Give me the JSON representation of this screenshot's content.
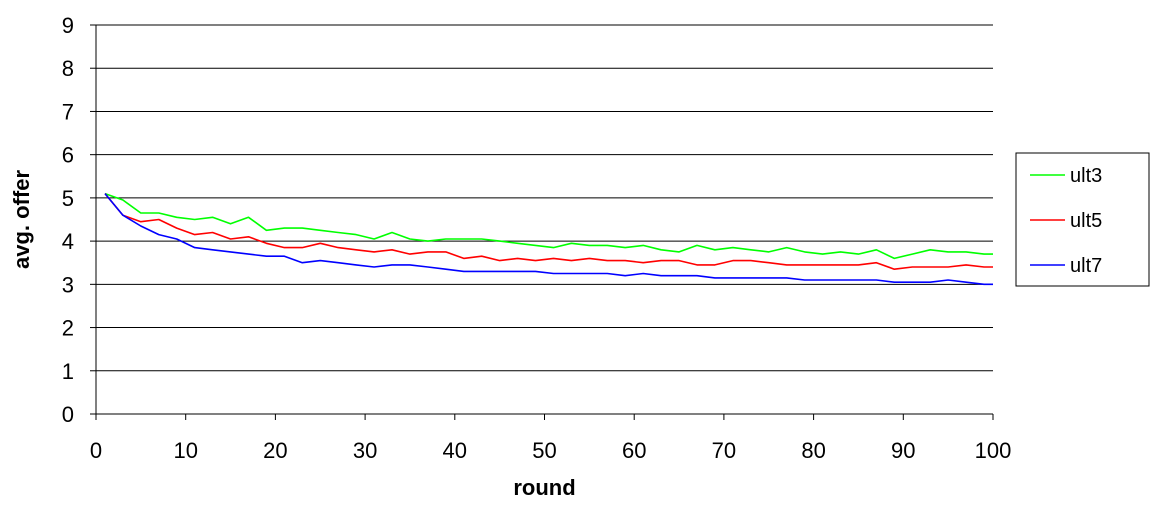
{
  "chart_data": {
    "type": "line",
    "xlabel": "round",
    "ylabel": "avg. offer",
    "xlim": [
      0,
      100
    ],
    "ylim": [
      0,
      9
    ],
    "xticks": [
      0,
      10,
      20,
      30,
      40,
      50,
      60,
      70,
      80,
      90,
      100
    ],
    "yticks": [
      0,
      1,
      2,
      3,
      4,
      5,
      6,
      7,
      8,
      9
    ],
    "grid": "horizontal",
    "legend_position": "right",
    "series": [
      {
        "name": "ult3",
        "color": "#00ff00",
        "x": [
          1,
          3,
          5,
          7,
          9,
          11,
          13,
          15,
          17,
          19,
          21,
          23,
          25,
          27,
          29,
          31,
          33,
          35,
          37,
          39,
          41,
          43,
          45,
          47,
          49,
          51,
          53,
          55,
          57,
          59,
          61,
          63,
          65,
          67,
          69,
          71,
          73,
          75,
          77,
          79,
          81,
          83,
          85,
          87,
          89,
          91,
          93,
          95,
          97,
          99,
          100
        ],
        "values": [
          5.1,
          4.95,
          4.65,
          4.65,
          4.55,
          4.5,
          4.55,
          4.4,
          4.55,
          4.25,
          4.3,
          4.3,
          4.25,
          4.2,
          4.15,
          4.05,
          4.2,
          4.05,
          4.0,
          4.05,
          4.05,
          4.05,
          4.0,
          3.95,
          3.9,
          3.85,
          3.95,
          3.9,
          3.9,
          3.85,
          3.9,
          3.8,
          3.75,
          3.9,
          3.8,
          3.85,
          3.8,
          3.75,
          3.85,
          3.75,
          3.7,
          3.75,
          3.7,
          3.8,
          3.6,
          3.7,
          3.8,
          3.75,
          3.75,
          3.7,
          3.7
        ]
      },
      {
        "name": "ult5",
        "color": "#ff0000",
        "x": [
          1,
          3,
          5,
          7,
          9,
          11,
          13,
          15,
          17,
          19,
          21,
          23,
          25,
          27,
          29,
          31,
          33,
          35,
          37,
          39,
          41,
          43,
          45,
          47,
          49,
          51,
          53,
          55,
          57,
          59,
          61,
          63,
          65,
          67,
          69,
          71,
          73,
          75,
          77,
          79,
          81,
          83,
          85,
          87,
          89,
          91,
          93,
          95,
          97,
          99,
          100
        ],
        "values": [
          5.1,
          4.6,
          4.45,
          4.5,
          4.3,
          4.15,
          4.2,
          4.05,
          4.1,
          3.95,
          3.85,
          3.85,
          3.95,
          3.85,
          3.8,
          3.75,
          3.8,
          3.7,
          3.75,
          3.75,
          3.6,
          3.65,
          3.55,
          3.6,
          3.55,
          3.6,
          3.55,
          3.6,
          3.55,
          3.55,
          3.5,
          3.55,
          3.55,
          3.45,
          3.45,
          3.55,
          3.55,
          3.5,
          3.45,
          3.45,
          3.45,
          3.45,
          3.45,
          3.5,
          3.35,
          3.4,
          3.4,
          3.4,
          3.45,
          3.4,
          3.4
        ]
      },
      {
        "name": "ult7",
        "color": "#0000ff",
        "x": [
          1,
          3,
          5,
          7,
          9,
          11,
          13,
          15,
          17,
          19,
          21,
          23,
          25,
          27,
          29,
          31,
          33,
          35,
          37,
          39,
          41,
          43,
          45,
          47,
          49,
          51,
          53,
          55,
          57,
          59,
          61,
          63,
          65,
          67,
          69,
          71,
          73,
          75,
          77,
          79,
          81,
          83,
          85,
          87,
          89,
          91,
          93,
          95,
          97,
          99,
          100
        ],
        "values": [
          5.1,
          4.6,
          4.35,
          4.15,
          4.05,
          3.85,
          3.8,
          3.75,
          3.7,
          3.65,
          3.65,
          3.5,
          3.55,
          3.5,
          3.45,
          3.4,
          3.45,
          3.45,
          3.4,
          3.35,
          3.3,
          3.3,
          3.3,
          3.3,
          3.3,
          3.25,
          3.25,
          3.25,
          3.25,
          3.2,
          3.25,
          3.2,
          3.2,
          3.2,
          3.15,
          3.15,
          3.15,
          3.15,
          3.15,
          3.1,
          3.1,
          3.1,
          3.1,
          3.1,
          3.05,
          3.05,
          3.05,
          3.1,
          3.05,
          3.0,
          3.0
        ]
      }
    ]
  }
}
